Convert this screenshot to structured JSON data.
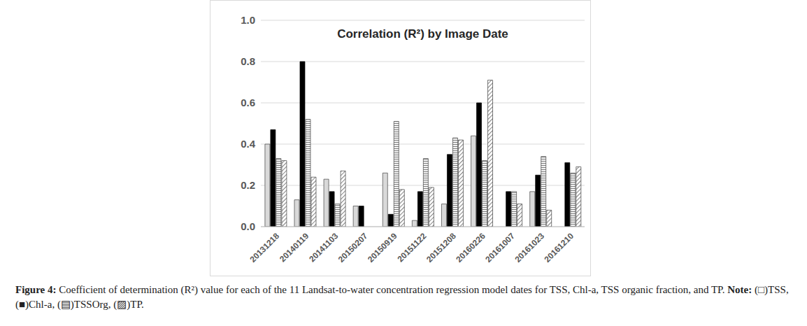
{
  "chart_data": {
    "type": "bar",
    "title": "Correlation (R²) by Image Date",
    "categories": [
      "20131218",
      "20140119",
      "20141103",
      "20150207",
      "20150919",
      "20151122",
      "20151208",
      "20160226",
      "20161007",
      "20161023",
      "20161210"
    ],
    "series": [
      {
        "name": "TSS",
        "color": "#d9d9d9",
        "values": [
          0.4,
          0.13,
          0.23,
          0.1,
          0.26,
          0.03,
          0.11,
          0.44,
          null,
          0.17,
          null
        ]
      },
      {
        "name": "Chl-a",
        "color": "#000000",
        "values": [
          0.47,
          0.8,
          0.17,
          0.1,
          0.06,
          0.17,
          0.35,
          0.6,
          0.17,
          0.25,
          0.31
        ]
      },
      {
        "name": "TSSOrg",
        "color": "#7f7f7f",
        "values": [
          0.33,
          0.52,
          0.11,
          null,
          0.51,
          0.33,
          0.43,
          0.32,
          0.17,
          0.34,
          0.26
        ]
      },
      {
        "name": "TP",
        "color": "#595959",
        "values": [
          0.32,
          0.24,
          0.27,
          null,
          0.18,
          0.19,
          0.42,
          0.71,
          0.11,
          0.08,
          0.29
        ]
      }
    ],
    "ylim": [
      0,
      1
    ],
    "yticks": [
      {
        "value": 0,
        "label": "0.0"
      },
      0.2,
      0.4,
      0.6,
      0.8,
      {
        "value": 1,
        "label": "1.0"
      }
    ],
    "grid": true,
    "caption_label": "Figure 4:",
    "caption": "Coefficient of determination (R²) value for each of the 11 Landsat-to-water concentration regression model dates for TSS, Chl-a, TSS organic fraction, and TP.",
    "note_label": "Note:",
    "note": "(□)TSS, (■)Chl-a, (▤)TSSOrg, (▨)TP."
  }
}
